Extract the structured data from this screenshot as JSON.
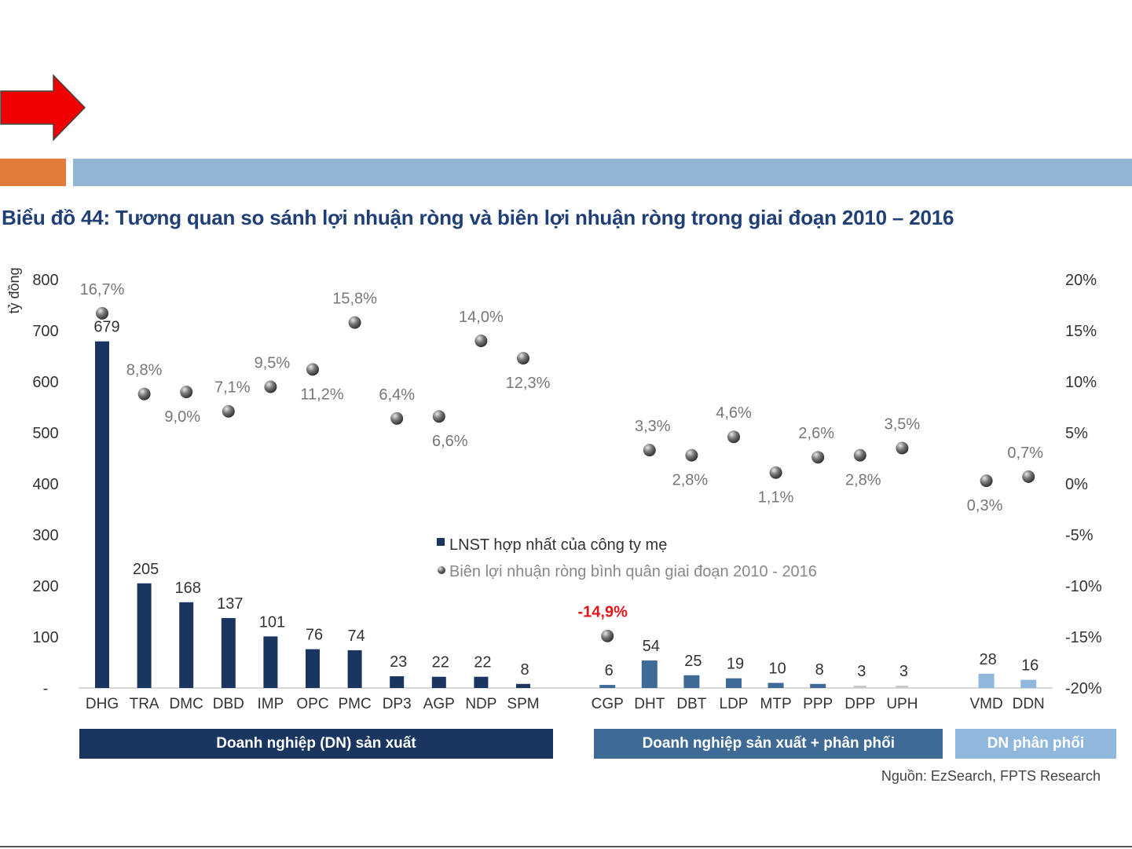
{
  "header": {
    "arrow_icon": "right-arrow-icon",
    "arrow_color": "#ee0000",
    "accent_orange": "#e07b3c",
    "accent_blue": "#93b4d3"
  },
  "chart_data": {
    "type": "bar+scatter",
    "title": "Biểu đồ 44: Tương quan so sánh lợi nhuận ròng và biên lợi nhuận ròng trong giai đoạn 2010 – 2016",
    "ylabel": "tỷ đồng",
    "ylim": [
      0,
      800
    ],
    "y_ticks": [
      "-",
      "100",
      "200",
      "300",
      "400",
      "500",
      "600",
      "700",
      "800"
    ],
    "y2lim": [
      -20,
      20
    ],
    "y2_ticks": [
      "-20%",
      "-15%",
      "-10%",
      "-5%",
      "0%",
      "5%",
      "10%",
      "15%",
      "20%"
    ],
    "grid": false,
    "legend_placement": "center",
    "legend": [
      "LNST hợp nhất của công ty mẹ",
      "Biên lợi nhuận ròng bình quân giai đoạn 2010 - 2016"
    ],
    "groups": [
      {
        "name": "Doanh nghiệp (DN) sản xuất",
        "color": "#1a3560",
        "categories": [
          "DHG",
          "TRA",
          "DMC",
          "DBD",
          "IMP",
          "OPC",
          "PMC",
          "DP3",
          "AGP",
          "NDP",
          "SPM"
        ],
        "profit": [
          679,
          205,
          168,
          137,
          101,
          76,
          74,
          23,
          22,
          22,
          8
        ],
        "margin": [
          16.7,
          8.8,
          9.0,
          7.1,
          9.5,
          11.2,
          15.8,
          6.4,
          6.6,
          14.0,
          12.3
        ],
        "margin_labels": [
          "16,7%",
          "8,8%",
          "9,0%",
          "7,1%",
          "9,5%",
          "11,2%",
          "15,8%",
          "6,4%",
          "6,6%",
          "14,0%",
          "12,3%"
        ]
      },
      {
        "name": "Doanh nghiệp sản xuất + phân phối",
        "color": "#3f6a96",
        "categories": [
          "CGP",
          "DHT",
          "DBT",
          "LDP",
          "MTP",
          "PPP",
          "DPP",
          "UPH"
        ],
        "profit": [
          6,
          54,
          25,
          19,
          10,
          8,
          3,
          3
        ],
        "margin": [
          -14.9,
          3.3,
          2.8,
          4.6,
          1.1,
          2.6,
          2.8,
          3.5
        ],
        "margin_labels": [
          "-14,9%",
          "3,3%",
          "2,8%",
          "4,6%",
          "1,1%",
          "2,6%",
          "2,8%",
          "3,5%"
        ]
      },
      {
        "name": "DN phân phối",
        "color": "#8fb8dc",
        "categories": [
          "VMD",
          "DDN"
        ],
        "profit": [
          28,
          16
        ],
        "margin": [
          0.3,
          0.7
        ],
        "margin_labels": [
          "0,3%",
          "0,7%"
        ]
      }
    ],
    "highlight_color": "#e0161b",
    "source": "Nguồn: EzSearch, FPTS Research"
  }
}
